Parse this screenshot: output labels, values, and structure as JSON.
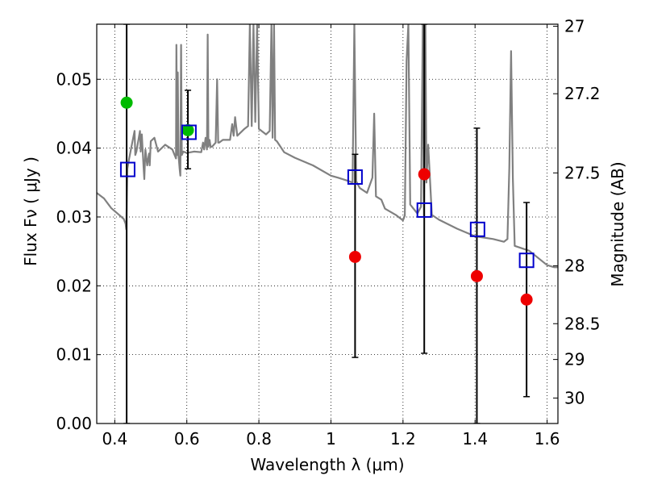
{
  "chart_data": {
    "type": "scatter",
    "xlabel": "Wavelength  λ (μm)",
    "ylabel": "Flux  Fν  ( μJy )",
    "y2label": "Magnitude (AB)",
    "xlim": [
      0.35,
      1.63
    ],
    "ylim": [
      0.0,
      0.058
    ],
    "xticks": [
      0.4,
      0.6,
      0.8,
      1.0,
      1.2,
      1.4,
      1.6
    ],
    "xtick_labels": [
      "0.4",
      "0.6",
      "0.8",
      "1",
      "1.2",
      "1.4",
      "1.6"
    ],
    "yticks": [
      0.0,
      0.01,
      0.02,
      0.03,
      0.04,
      0.05
    ],
    "ytick_labels": [
      "0.00",
      "0.01",
      "0.02",
      "0.03",
      "0.04",
      "0.05"
    ],
    "y2ticks": [
      {
        "label": "27",
        "flux": 0.0577
      },
      {
        "label": "27.2",
        "flux": 0.0479
      },
      {
        "label": "27.5",
        "flux": 0.0364
      },
      {
        "label": "28",
        "flux": 0.0229
      },
      {
        "label": "28.5",
        "flux": 0.0145
      },
      {
        "label": "29",
        "flux": 0.0093
      },
      {
        "label": "30",
        "flux": 0.0037
      }
    ],
    "grid": true,
    "colors": {
      "model": "#808080",
      "green_points": "#00bb00",
      "red_points": "#ee0000",
      "model_flux": "#0000cc",
      "error_bars": "#000000"
    },
    "model_spectrum": {
      "x": [
        0.35,
        0.37,
        0.39,
        0.41,
        0.425,
        0.43,
        0.432,
        0.435,
        0.44,
        0.45,
        0.455,
        0.457,
        0.46,
        0.47,
        0.472,
        0.475,
        0.48,
        0.482,
        0.485,
        0.49,
        0.495,
        0.497,
        0.5,
        0.51,
        0.52,
        0.54,
        0.56,
        0.57,
        0.571,
        0.573,
        0.575,
        0.577,
        0.58,
        0.582,
        0.584,
        0.586,
        0.59,
        0.6,
        0.62,
        0.64,
        0.645,
        0.648,
        0.652,
        0.656,
        0.658,
        0.66,
        0.663,
        0.666,
        0.67,
        0.68,
        0.684,
        0.687,
        0.69,
        0.7,
        0.72,
        0.726,
        0.73,
        0.734,
        0.74,
        0.76,
        0.77,
        0.775,
        0.78,
        0.785,
        0.79,
        0.795,
        0.8,
        0.82,
        0.83,
        0.835,
        0.838,
        0.842,
        0.845,
        0.85,
        0.86,
        0.87,
        0.9,
        0.95,
        1.0,
        1.02,
        1.05,
        1.06,
        1.065,
        1.07,
        1.08,
        1.1,
        1.115,
        1.12,
        1.125,
        1.14,
        1.15,
        1.18,
        1.2,
        1.205,
        1.21,
        1.215,
        1.22,
        1.24,
        1.25,
        1.255,
        1.258,
        1.262,
        1.265,
        1.27,
        1.28,
        1.3,
        1.35,
        1.4,
        1.45,
        1.48,
        1.49,
        1.495,
        1.5,
        1.505,
        1.51,
        1.55,
        1.6,
        1.62,
        1.63
      ],
      "y": [
        0.0335,
        0.0327,
        0.0313,
        0.0304,
        0.0297,
        0.029,
        0.0282,
        0.037,
        0.0385,
        0.0412,
        0.0425,
        0.039,
        0.0395,
        0.0425,
        0.0395,
        0.042,
        0.0372,
        0.0355,
        0.0398,
        0.0375,
        0.0392,
        0.0375,
        0.041,
        0.0415,
        0.0395,
        0.0405,
        0.0398,
        0.0385,
        0.055,
        0.039,
        0.051,
        0.039,
        0.037,
        0.036,
        0.055,
        0.039,
        0.0395,
        0.0393,
        0.0395,
        0.0394,
        0.0408,
        0.0398,
        0.0415,
        0.0398,
        0.0565,
        0.0402,
        0.0412,
        0.0402,
        0.0402,
        0.0408,
        0.05,
        0.0408,
        0.0408,
        0.0412,
        0.0412,
        0.0435,
        0.0418,
        0.0445,
        0.0418,
        0.0428,
        0.0432,
        0.058,
        0.0432,
        0.058,
        0.0438,
        0.058,
        0.0428,
        0.042,
        0.0425,
        0.058,
        0.0415,
        0.058,
        0.0412,
        0.041,
        0.0402,
        0.0394,
        0.0386,
        0.0375,
        0.036,
        0.0357,
        0.0352,
        0.035,
        0.058,
        0.0352,
        0.0342,
        0.0335,
        0.0357,
        0.045,
        0.033,
        0.0325,
        0.0312,
        0.0303,
        0.0295,
        0.0302,
        0.0527,
        0.058,
        0.0318,
        0.0305,
        0.0315,
        0.058,
        0.0302,
        0.058,
        0.035,
        0.0405,
        0.0303,
        0.0296,
        0.0283,
        0.0272,
        0.0268,
        0.0264,
        0.0268,
        0.0371,
        0.0541,
        0.0356,
        0.0258,
        0.0251,
        0.023,
        0.0227,
        0.0227
      ]
    },
    "series": [
      {
        "marker": "circle",
        "color_key": "green_points",
        "points": [
          {
            "x": 0.433,
            "y": 0.0466,
            "err_low": 0.0,
            "err_high": 0.058
          },
          {
            "x": 0.603,
            "y": 0.0426,
            "err_low": 0.037,
            "err_high": 0.0484
          }
        ]
      },
      {
        "marker": "circle",
        "color_key": "red_points",
        "points": [
          {
            "x": 1.067,
            "y": 0.0242,
            "err_low": 0.0096,
            "err_high": 0.0391
          },
          {
            "x": 1.259,
            "y": 0.0362,
            "err_low": 0.0102,
            "err_high": 0.058
          },
          {
            "x": 1.405,
            "y": 0.0214,
            "err_low": 0.0,
            "err_high": 0.0429
          },
          {
            "x": 1.543,
            "y": 0.018,
            "err_low": 0.0039,
            "err_high": 0.0321
          }
        ]
      },
      {
        "marker": "open-square",
        "color_key": "model_flux",
        "points": [
          {
            "x": 0.436,
            "y": 0.0369
          },
          {
            "x": 0.606,
            "y": 0.0423
          },
          {
            "x": 1.067,
            "y": 0.0358
          },
          {
            "x": 1.259,
            "y": 0.031
          },
          {
            "x": 1.407,
            "y": 0.0282
          },
          {
            "x": 1.543,
            "y": 0.0237
          }
        ]
      }
    ]
  }
}
